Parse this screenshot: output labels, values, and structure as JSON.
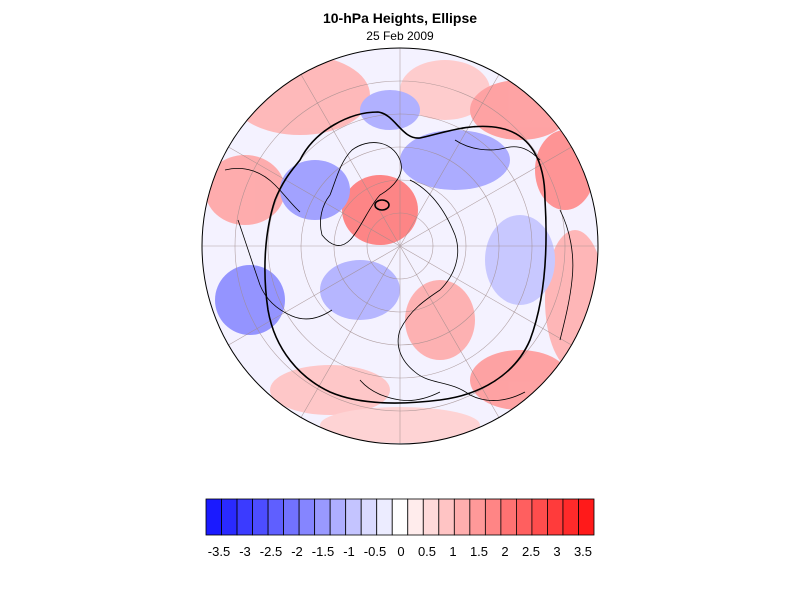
{
  "title": "10-hPa Heights, Ellipse",
  "date": "25 Feb 2009",
  "map": {
    "projection": "polar stereographic (north pole)",
    "field": "10-hPa geopotential height anomaly",
    "overlay": "ellipse contour (black)"
  },
  "colorbar": {
    "labels": [
      "-3.5",
      "-3",
      "-2.5",
      "-2",
      "-1.5",
      "-1",
      "-0.5",
      "0",
      "0.5",
      "1",
      "1.5",
      "2",
      "2.5",
      "3",
      "3.5"
    ],
    "colors": [
      "#1a1aff",
      "#2a2aff",
      "#3b3bff",
      "#4d4dff",
      "#5f5fff",
      "#7272ff",
      "#8585ff",
      "#9999ff",
      "#aeaeff",
      "#c4c4ff",
      "#dadaff",
      "#ececff",
      "#ffffff",
      "#ffecec",
      "#ffdada",
      "#ffc4c4",
      "#ffaeae",
      "#ff9999",
      "#ff8585",
      "#ff7272",
      "#ff5f5f",
      "#ff4d4d",
      "#ff3b3b",
      "#ff2a2a",
      "#ff1a1a"
    ]
  }
}
